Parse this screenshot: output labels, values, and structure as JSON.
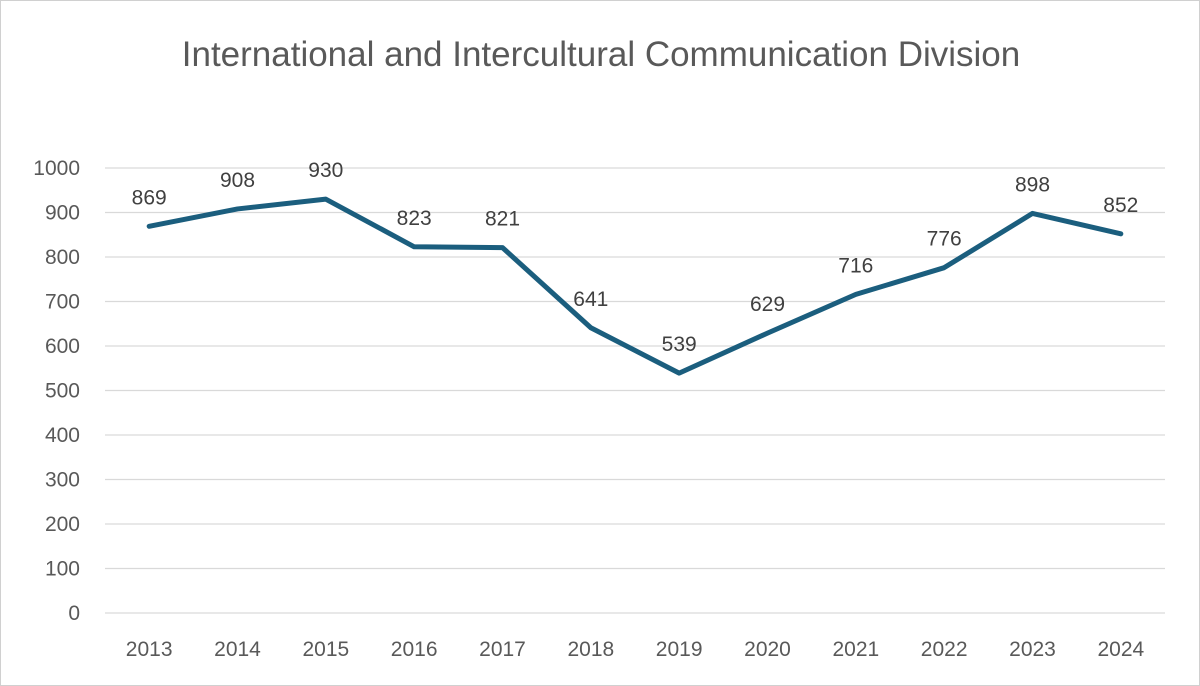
{
  "chart_data": {
    "type": "line",
    "title": "International and Intercultural Communication Division",
    "categories": [
      "2013",
      "2014",
      "2015",
      "2016",
      "2017",
      "2018",
      "2019",
      "2020",
      "2021",
      "2022",
      "2023",
      "2024"
    ],
    "series": [
      {
        "values": [
          869,
          908,
          930,
          823,
          821,
          641,
          539,
          629,
          716,
          776,
          898,
          852
        ]
      }
    ],
    "ylim": [
      0,
      1000
    ],
    "yticks": [
      0,
      100,
      200,
      300,
      400,
      500,
      600,
      700,
      800,
      900,
      1000
    ],
    "grid": true,
    "data_labels": true,
    "legend": "none",
    "line_color": "#1b5e7e"
  }
}
